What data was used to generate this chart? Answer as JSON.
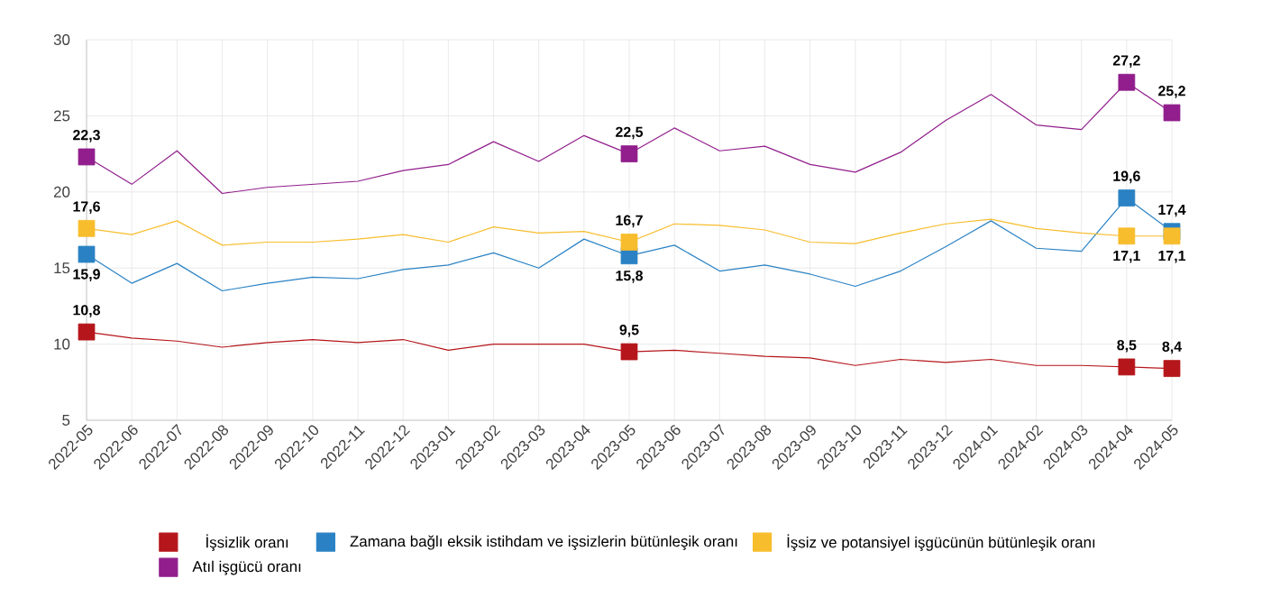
{
  "chart_data": {
    "type": "line",
    "categories": [
      "2022-05",
      "2022-06",
      "2022-07",
      "2022-08",
      "2022-09",
      "2022-10",
      "2022-11",
      "2022-12",
      "2023-01",
      "2023-02",
      "2023-03",
      "2023-04",
      "2023-05",
      "2023-06",
      "2023-07",
      "2023-08",
      "2023-09",
      "2023-10",
      "2023-11",
      "2023-12",
      "2024-01",
      "2024-02",
      "2024-03",
      "2024-04",
      "2024-05"
    ],
    "series": [
      {
        "name": "İşsizlik oranı",
        "color": "#b5161b",
        "values": [
          10.8,
          10.4,
          10.2,
          9.8,
          10.1,
          10.3,
          10.1,
          10.3,
          9.6,
          10.0,
          10.0,
          10.0,
          9.5,
          9.6,
          9.4,
          9.2,
          9.1,
          8.6,
          9.0,
          8.8,
          9.0,
          8.6,
          8.6,
          8.5,
          8.4
        ],
        "value_labels": [
          "10,8",
          null,
          null,
          null,
          null,
          null,
          null,
          null,
          null,
          null,
          null,
          null,
          "9,5",
          null,
          null,
          null,
          null,
          null,
          null,
          null,
          null,
          null,
          null,
          "8,5",
          "8,4"
        ]
      },
      {
        "name": "Zamana bağlı eksik istihdam ve işsizlerin bütünleşik oranı",
        "color": "#2a82c4",
        "values": [
          15.9,
          14.0,
          15.3,
          13.5,
          14.0,
          14.4,
          14.3,
          14.9,
          15.2,
          16.0,
          15.0,
          16.9,
          15.8,
          16.5,
          14.8,
          15.2,
          14.6,
          13.8,
          14.8,
          16.4,
          18.1,
          16.3,
          16.1,
          19.6,
          17.4
        ],
        "value_labels": [
          "15,9",
          null,
          null,
          null,
          null,
          null,
          null,
          null,
          null,
          null,
          null,
          null,
          "15,8",
          null,
          null,
          null,
          null,
          null,
          null,
          null,
          null,
          null,
          null,
          "19,6",
          "17,4"
        ]
      },
      {
        "name": "İşsiz ve potansiyel işgücünün bütünleşik oranı",
        "color": "#f7bd2c",
        "values": [
          17.6,
          17.2,
          18.1,
          16.5,
          16.7,
          16.7,
          16.9,
          17.2,
          16.7,
          17.7,
          17.3,
          17.4,
          16.7,
          17.9,
          17.8,
          17.5,
          16.7,
          16.6,
          17.3,
          17.9,
          18.2,
          17.6,
          17.3,
          17.1,
          17.1
        ],
        "value_labels": [
          "17,6",
          null,
          null,
          null,
          null,
          null,
          null,
          null,
          null,
          null,
          null,
          null,
          "16,7",
          null,
          null,
          null,
          null,
          null,
          null,
          null,
          null,
          null,
          null,
          "17,1",
          "17,1"
        ]
      },
      {
        "name": "Atıl işgücü oranı",
        "color": "#911e8c",
        "values": [
          22.3,
          20.5,
          22.7,
          19.9,
          20.3,
          20.5,
          20.7,
          21.4,
          21.8,
          23.3,
          22.0,
          23.7,
          22.5,
          24.2,
          22.7,
          23.0,
          21.8,
          21.3,
          22.6,
          24.7,
          26.4,
          24.4,
          24.1,
          27.2,
          25.2
        ],
        "value_labels": [
          "22,3",
          null,
          null,
          null,
          null,
          null,
          null,
          null,
          null,
          null,
          null,
          null,
          "22,5",
          null,
          null,
          null,
          null,
          null,
          null,
          null,
          null,
          null,
          null,
          "27,2",
          "25,2"
        ]
      }
    ],
    "ylim": [
      5,
      30
    ],
    "yticks": [
      5,
      10,
      15,
      20,
      25,
      30
    ],
    "grid": true,
    "legend": "bottom",
    "line_style": "solid"
  }
}
